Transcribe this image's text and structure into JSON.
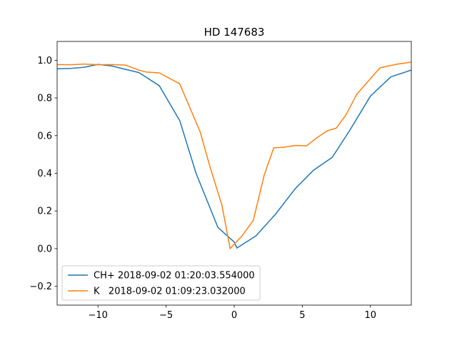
{
  "chart_data": {
    "type": "line",
    "title": "HD 147683",
    "xlabel": "",
    "ylabel": "",
    "xlim": [
      -13,
      13
    ],
    "ylim": [
      -0.3,
      1.1
    ],
    "xticks": [
      -10,
      -5,
      0,
      5,
      10
    ],
    "yticks": [
      -0.2,
      0.0,
      0.2,
      0.4,
      0.6,
      0.8,
      1.0
    ],
    "xtick_labels": [
      "−10",
      "−5",
      "0",
      "5",
      "10"
    ],
    "ytick_labels": [
      "−0.2",
      "0.0",
      "0.2",
      "0.4",
      "0.6",
      "0.8",
      "1.0"
    ],
    "grid": false,
    "legend_position": "lower-left",
    "series": [
      {
        "name": "CH+ 2018-09-02 01:20:03.554000",
        "color": "#1f77b4",
        "x": [
          -13,
          -12,
          -11,
          -10,
          -9,
          -8,
          -7,
          -5.5,
          -4,
          -2.8,
          -1.2,
          0,
          0.2,
          1.6,
          3,
          4.5,
          5.8,
          7.2,
          8.5,
          10,
          11.5,
          13
        ],
        "y": [
          0.955,
          0.957,
          0.963,
          0.978,
          0.97,
          0.952,
          0.935,
          0.865,
          0.68,
          0.4,
          0.113,
          0.035,
          0.003,
          0.068,
          0.18,
          0.32,
          0.415,
          0.485,
          0.63,
          0.81,
          0.912,
          0.948
        ]
      },
      {
        "name": "K   2018-09-02 01:09:23.032000",
        "color": "#ff7f0e",
        "x": [
          -13,
          -12,
          -11,
          -10,
          -9,
          -8,
          -7,
          -6.5,
          -5.5,
          -4,
          -2.5,
          -1.8,
          -0.9,
          -0.3,
          0.6,
          1.4,
          2.2,
          2.9,
          3.6,
          4.5,
          5.3,
          6,
          6.8,
          7.5,
          8.2,
          9,
          10.7,
          12,
          13
        ],
        "y": [
          0.977,
          0.976,
          0.98,
          0.976,
          0.977,
          0.975,
          0.948,
          0.938,
          0.933,
          0.875,
          0.62,
          0.44,
          0.23,
          0.0,
          0.07,
          0.15,
          0.39,
          0.535,
          0.538,
          0.548,
          0.545,
          0.585,
          0.625,
          0.64,
          0.71,
          0.82,
          0.96,
          0.98,
          0.99
        ]
      }
    ]
  }
}
